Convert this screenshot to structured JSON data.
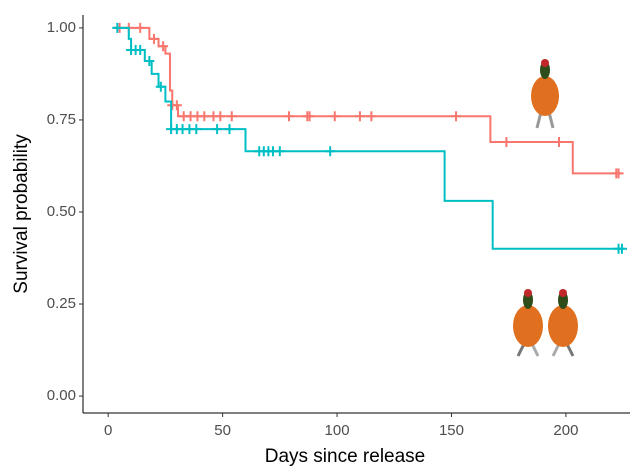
{
  "chart_data": {
    "type": "step",
    "x_label": "Days since release",
    "y_label": "Survival probability",
    "xlim": [
      -11,
      228
    ],
    "ylim": [
      -0.046,
      1.035
    ],
    "xticks": [
      0,
      50,
      100,
      150,
      200
    ],
    "yticks": [
      {
        "value": 0,
        "label": "0.00"
      },
      {
        "value": 0.25,
        "label": "0.25"
      },
      {
        "value": 0.5,
        "label": "0.50"
      },
      {
        "value": 0.75,
        "label": "0.75"
      },
      {
        "value": 1,
        "label": "1.00"
      }
    ],
    "series": [
      {
        "color": "#F8766D",
        "x": [
          2,
          18,
          22,
          25,
          27,
          28,
          30.5,
          167,
          203,
          224
        ],
        "values": [
          1,
          0.97,
          0.95,
          0.93,
          0.83,
          0.79,
          0.76,
          0.69,
          0.605,
          0.605
        ],
        "censor_x": [
          5,
          9,
          14,
          20,
          24,
          28,
          30,
          33,
          36,
          39,
          42,
          46,
          49,
          54,
          79,
          87,
          88,
          99,
          110,
          115,
          152,
          174,
          197,
          222,
          223
        ],
        "censor_y": [
          1,
          1,
          1,
          0.97,
          0.95,
          0.79,
          0.79,
          0.76,
          0.76,
          0.76,
          0.76,
          0.76,
          0.76,
          0.76,
          0.76,
          0.76,
          0.76,
          0.76,
          0.76,
          0.76,
          0.76,
          0.69,
          0.69,
          0.605,
          0.605
        ]
      },
      {
        "color": "#00BFC4",
        "x": [
          2,
          9,
          10,
          16,
          19,
          22,
          25,
          27.5,
          60,
          147,
          168,
          224
        ],
        "values": [
          1,
          0.97,
          0.94,
          0.91,
          0.875,
          0.84,
          0.8,
          0.725,
          0.665,
          0.53,
          0.4,
          0.4
        ],
        "censor_x": [
          4,
          10,
          12,
          14,
          18,
          23,
          27.5,
          30,
          32.5,
          35.5,
          38.5,
          47.6,
          53,
          66,
          68,
          70,
          72,
          75,
          97,
          223,
          224.5
        ],
        "censor_y": [
          1,
          0.94,
          0.94,
          0.94,
          0.91,
          0.84,
          0.725,
          0.725,
          0.725,
          0.725,
          0.725,
          0.725,
          0.725,
          0.665,
          0.665,
          0.665,
          0.665,
          0.665,
          0.665,
          0.4,
          0.4
        ]
      }
    ]
  }
}
